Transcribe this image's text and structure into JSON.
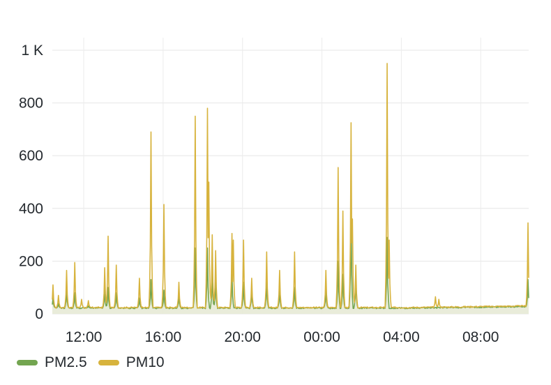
{
  "chart_data": {
    "type": "line",
    "title": "",
    "xlabel": "",
    "ylabel": "",
    "ylim": [
      0,
      1000
    ],
    "yticks": [
      0,
      200,
      400,
      600,
      800,
      1000
    ],
    "ytick_labels": [
      "0",
      "200",
      "400",
      "600",
      "800",
      "1 K"
    ],
    "x_range": [
      "10:25",
      "10:25 (+1 day)"
    ],
    "xticks": [
      {
        "label": "12:00",
        "time": "12:00"
      },
      {
        "label": "16:00",
        "time": "16:00"
      },
      {
        "label": "20:00",
        "time": "20:00"
      },
      {
        "label": "00:00",
        "time": "00:00 (+1 day)"
      },
      {
        "label": "04:00",
        "time": "04:00 (+1 day)"
      },
      {
        "label": "08:00",
        "time": "08:00 (+1 day)"
      }
    ],
    "grid": true,
    "legend": "bottom-left",
    "series": [
      {
        "name": "PM2.5",
        "color": "#73a550",
        "baseline": 22,
        "spikes": [
          [
            "10:28",
            60
          ],
          [
            "10:43",
            40
          ],
          [
            "11:08",
            90
          ],
          [
            "11:33",
            80
          ],
          [
            "12:13",
            30
          ],
          [
            "13:03",
            90
          ],
          [
            "13:13",
            100
          ],
          [
            "13:38",
            80
          ],
          [
            "14:48",
            60
          ],
          [
            "15:23",
            130
          ],
          [
            "16:03",
            90
          ],
          [
            "16:48",
            70
          ],
          [
            "17:38",
            250
          ],
          [
            "18:13",
            250
          ],
          [
            "18:28",
            150
          ],
          [
            "18:38",
            130
          ],
          [
            "19:28",
            150
          ],
          [
            "20:03",
            120
          ],
          [
            "20:28",
            90
          ],
          [
            "21:13",
            120
          ],
          [
            "21:53",
            90
          ],
          [
            "22:38",
            100
          ],
          [
            "00:13",
            90
          ],
          [
            "00:48",
            200
          ],
          [
            "01:03",
            150
          ],
          [
            "01:28",
            380
          ],
          [
            "01:43",
            130
          ],
          [
            "03:18",
            290
          ],
          [
            "10:23",
            130
          ]
        ]
      },
      {
        "name": "PM10",
        "color": "#d7b33d",
        "baseline": 24,
        "spikes": [
          [
            "10:28",
            110
          ],
          [
            "10:43",
            70
          ],
          [
            "11:08",
            165
          ],
          [
            "11:33",
            195
          ],
          [
            "11:53",
            55
          ],
          [
            "12:13",
            50
          ],
          [
            "13:03",
            175
          ],
          [
            "13:13",
            295
          ],
          [
            "13:38",
            185
          ],
          [
            "14:48",
            135
          ],
          [
            "15:23",
            690
          ],
          [
            "16:03",
            415
          ],
          [
            "16:48",
            120
          ],
          [
            "17:38",
            750
          ],
          [
            "18:13",
            780
          ],
          [
            "18:18",
            500
          ],
          [
            "18:28",
            300
          ],
          [
            "18:38",
            240
          ],
          [
            "19:28",
            305
          ],
          [
            "19:33",
            280
          ],
          [
            "20:03",
            280
          ],
          [
            "20:28",
            135
          ],
          [
            "21:13",
            235
          ],
          [
            "21:53",
            165
          ],
          [
            "22:38",
            235
          ],
          [
            "00:13",
            165
          ],
          [
            "00:48",
            555
          ],
          [
            "01:03",
            390
          ],
          [
            "01:28",
            725
          ],
          [
            "01:33",
            360
          ],
          [
            "01:43",
            185
          ],
          [
            "03:18",
            950
          ],
          [
            "03:23",
            280
          ],
          [
            "05:43",
            65
          ],
          [
            "05:53",
            55
          ],
          [
            "10:23",
            345
          ]
        ]
      }
    ]
  }
}
